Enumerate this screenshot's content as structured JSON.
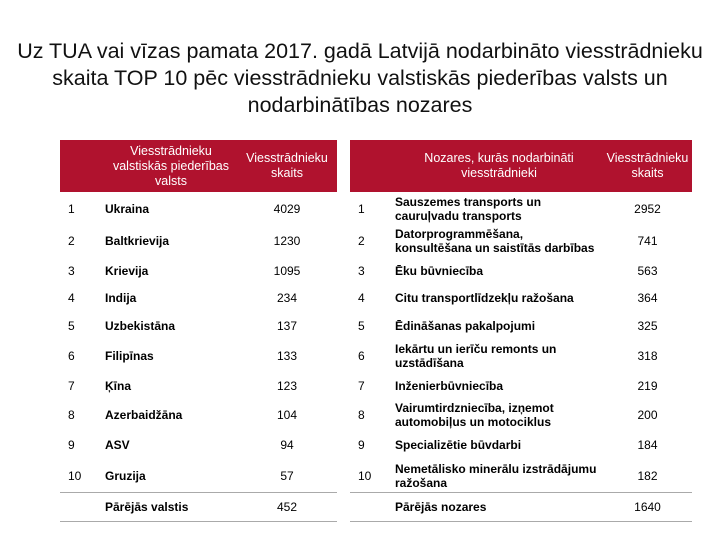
{
  "title": "Uz TUA vai vīzas pamata 2017. gadā Latvijā nodarbināto viesstrādnieku skaita TOP 10 pēc viesstrādnieku valstiskās piederības valsts un nodarbinātības nozares",
  "header_color": "#b0122e",
  "country_table": {
    "headers": [
      "",
      "Viesstrādnieku valstiskās piederības valsts",
      "Viesstrādnieku skaits"
    ],
    "rows": [
      {
        "rank": "1",
        "name": "Ukraina",
        "value": "4029"
      },
      {
        "rank": "2",
        "name": "Baltkrievija",
        "value": "1230"
      },
      {
        "rank": "3",
        "name": "Krievija",
        "value": "1095"
      },
      {
        "rank": "4",
        "name": "Indija",
        "value": "234"
      },
      {
        "rank": "5",
        "name": "Uzbekistāna",
        "value": "137"
      },
      {
        "rank": "6",
        "name": "Filipīnas",
        "value": "133"
      },
      {
        "rank": "7",
        "name": "Ķīna",
        "value": "123"
      },
      {
        "rank": "8",
        "name": "Azerbaidžāna",
        "value": "104"
      },
      {
        "rank": "9",
        "name": "ASV",
        "value": "94"
      },
      {
        "rank": "10",
        "name": "Gruzija",
        "value": "57"
      }
    ],
    "total": {
      "rank": "",
      "name": "Pārējās valstis",
      "value": "452"
    }
  },
  "sector_table": {
    "headers": [
      "",
      "Nozares, kurās nodarbināti viesstrādnieki",
      "Viesstrādnieku skaits"
    ],
    "rows": [
      {
        "rank": "1",
        "name": "Sauszemes transports un cauruļvadu transports",
        "value": "2952"
      },
      {
        "rank": "2",
        "name": "Datorprogrammēšana, konsultēšana un saistītās darbības",
        "value": "741"
      },
      {
        "rank": "3",
        "name": "Ēku būvniecība",
        "value": "563"
      },
      {
        "rank": "4",
        "name": "Citu transportlīdzekļu ražošana",
        "value": "364"
      },
      {
        "rank": "5",
        "name": "Ēdināšanas pakalpojumi",
        "value": "325"
      },
      {
        "rank": "6",
        "name": "Iekārtu un ierīču remonts un uzstādīšana",
        "value": "318"
      },
      {
        "rank": "7",
        "name": "Inženierbūvniecība",
        "value": "219"
      },
      {
        "rank": "8",
        "name": "Vairumtirdzniecība, izņemot automobiļus un motociklus",
        "value": "200"
      },
      {
        "rank": "9",
        "name": "Specializētie būvdarbi",
        "value": "184"
      },
      {
        "rank": "10",
        "name": "Nemetālisko minerālu izstrādājumu ražošana",
        "value": "182"
      }
    ],
    "total": {
      "rank": "",
      "name": "Pārējās nozares",
      "value": "1640"
    }
  }
}
